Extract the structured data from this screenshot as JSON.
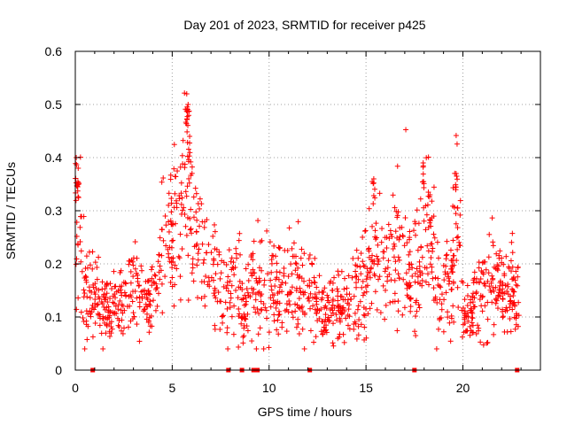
{
  "chart_data": {
    "type": "scatter",
    "title": "Day 201 of 2023, SRMTID for receiver p425",
    "xlabel": "GPS time / hours",
    "ylabel": "SRMTID / TECUs",
    "xlim": [
      0,
      24
    ],
    "ylim": [
      0,
      0.6
    ],
    "xticks": [
      0,
      5,
      10,
      15,
      20
    ],
    "xtick_labels": [
      "0",
      "5",
      "10",
      "15",
      "20"
    ],
    "yticks": [
      0,
      0.1,
      0.2,
      0.3,
      0.4,
      0.5,
      0.6
    ],
    "ytick_labels": [
      "0",
      "0.1",
      "0.2",
      "0.3",
      "0.4",
      "0.5",
      "0.6"
    ],
    "grid": true,
    "marker": "plus",
    "color": "#ff0000",
    "baseline_marks_x": [
      0.9,
      7.9,
      8.6,
      9.2,
      9.4,
      12.1,
      17.5,
      22.8
    ],
    "series": [
      {
        "name": "SRMTID",
        "envelope": [
          [
            0.0,
            0.18,
            0.09
          ],
          [
            0.1,
            0.25,
            0.1
          ],
          [
            0.2,
            0.3,
            0.09
          ],
          [
            0.4,
            0.16,
            0.05
          ],
          [
            0.6,
            0.13,
            0.04
          ],
          [
            0.8,
            0.15,
            0.04
          ],
          [
            1.0,
            0.14,
            0.04
          ],
          [
            1.3,
            0.12,
            0.03
          ],
          [
            1.6,
            0.11,
            0.03
          ],
          [
            1.9,
            0.11,
            0.03
          ],
          [
            2.2,
            0.12,
            0.03
          ],
          [
            2.5,
            0.13,
            0.03
          ],
          [
            2.8,
            0.15,
            0.04
          ],
          [
            3.1,
            0.14,
            0.04
          ],
          [
            3.5,
            0.13,
            0.03
          ],
          [
            3.9,
            0.12,
            0.03
          ],
          [
            4.2,
            0.18,
            0.05
          ],
          [
            4.5,
            0.22,
            0.06
          ],
          [
            4.8,
            0.26,
            0.06
          ],
          [
            5.1,
            0.27,
            0.06
          ],
          [
            5.4,
            0.28,
            0.07
          ],
          [
            5.6,
            0.34,
            0.09
          ],
          [
            5.8,
            0.38,
            0.1
          ],
          [
            6.0,
            0.28,
            0.07
          ],
          [
            6.3,
            0.26,
            0.06
          ],
          [
            6.6,
            0.22,
            0.06
          ],
          [
            7.0,
            0.21,
            0.05
          ],
          [
            7.3,
            0.18,
            0.05
          ],
          [
            7.6,
            0.16,
            0.04
          ],
          [
            7.9,
            0.13,
            0.04
          ],
          [
            8.3,
            0.14,
            0.05
          ],
          [
            8.7,
            0.1,
            0.04
          ],
          [
            9.0,
            0.13,
            0.05
          ],
          [
            9.5,
            0.15,
            0.05
          ],
          [
            10.0,
            0.15,
            0.05
          ],
          [
            10.5,
            0.14,
            0.05
          ],
          [
            11.0,
            0.15,
            0.05
          ],
          [
            11.5,
            0.16,
            0.05
          ],
          [
            12.0,
            0.13,
            0.04
          ],
          [
            12.5,
            0.12,
            0.04
          ],
          [
            13.0,
            0.1,
            0.03
          ],
          [
            13.5,
            0.11,
            0.03
          ],
          [
            14.0,
            0.13,
            0.04
          ],
          [
            14.5,
            0.15,
            0.05
          ],
          [
            15.0,
            0.18,
            0.05
          ],
          [
            15.3,
            0.22,
            0.07
          ],
          [
            15.6,
            0.21,
            0.06
          ],
          [
            16.0,
            0.19,
            0.05
          ],
          [
            16.5,
            0.2,
            0.06
          ],
          [
            17.0,
            0.19,
            0.06
          ],
          [
            17.5,
            0.15,
            0.05
          ],
          [
            17.9,
            0.23,
            0.07
          ],
          [
            18.2,
            0.27,
            0.07
          ],
          [
            18.6,
            0.15,
            0.05
          ],
          [
            19.0,
            0.13,
            0.04
          ],
          [
            19.4,
            0.17,
            0.05
          ],
          [
            19.7,
            0.24,
            0.08
          ],
          [
            20.0,
            0.1,
            0.03
          ],
          [
            20.4,
            0.11,
            0.03
          ],
          [
            20.8,
            0.13,
            0.04
          ],
          [
            21.2,
            0.16,
            0.05
          ],
          [
            21.6,
            0.17,
            0.05
          ],
          [
            22.0,
            0.15,
            0.04
          ],
          [
            22.5,
            0.14,
            0.04
          ],
          [
            22.9,
            0.13,
            0.04
          ]
        ],
        "peaks": [
          [
            0.05,
            0.4
          ],
          [
            0.15,
            0.38
          ],
          [
            5.75,
            0.52
          ],
          [
            5.82,
            0.5
          ],
          [
            15.4,
            0.36
          ],
          [
            17.95,
            0.39
          ],
          [
            19.65,
            0.37
          ],
          [
            5.9,
            0.44
          ],
          [
            18.3,
            0.33
          ]
        ],
        "n_points": 1400,
        "seed": 201
      }
    ]
  }
}
